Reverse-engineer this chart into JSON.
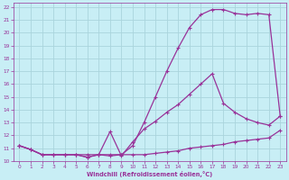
{
  "xlabel": "Windchill (Refroidissement éolien,°C)",
  "bg_color": "#c8eef5",
  "grid_color": "#aad4dc",
  "line_color": "#993399",
  "xlim": [
    -0.5,
    23.5
  ],
  "ylim": [
    10,
    22.3
  ],
  "xticks": [
    0,
    1,
    2,
    3,
    4,
    5,
    6,
    7,
    8,
    9,
    10,
    11,
    12,
    13,
    14,
    15,
    16,
    17,
    18,
    19,
    20,
    21,
    22,
    23
  ],
  "yticks": [
    10,
    11,
    12,
    13,
    14,
    15,
    16,
    17,
    18,
    19,
    20,
    21,
    22
  ],
  "line1_x": [
    0,
    1,
    2,
    3,
    4,
    5,
    6,
    7,
    8,
    9,
    10,
    11,
    12,
    13,
    14,
    15,
    16,
    17,
    18,
    19,
    20,
    21,
    22,
    23
  ],
  "line1_y": [
    11.2,
    10.9,
    10.5,
    10.5,
    10.5,
    10.5,
    10.5,
    10.5,
    10.5,
    10.5,
    10.5,
    10.5,
    10.6,
    10.7,
    10.8,
    11.0,
    11.1,
    11.2,
    11.3,
    11.5,
    11.6,
    11.7,
    11.8,
    12.4
  ],
  "line2_x": [
    0,
    1,
    2,
    3,
    4,
    5,
    6,
    7,
    8,
    9,
    10,
    11,
    12,
    13,
    14,
    15,
    16,
    17,
    18,
    19,
    20,
    21,
    22,
    23
  ],
  "line2_y": [
    11.2,
    10.9,
    10.5,
    10.5,
    10.5,
    10.5,
    10.3,
    10.5,
    10.4,
    10.5,
    11.2,
    13.0,
    15.0,
    17.0,
    18.8,
    20.4,
    21.4,
    21.8,
    21.8,
    21.5,
    21.4,
    21.5,
    21.4,
    13.5
  ],
  "line3_x": [
    0,
    1,
    2,
    3,
    4,
    5,
    6,
    7,
    8,
    9,
    10,
    11,
    12,
    13,
    14,
    15,
    16,
    17,
    18,
    19,
    20,
    21,
    22,
    23
  ],
  "line3_y": [
    11.2,
    10.9,
    10.5,
    10.5,
    10.5,
    10.5,
    10.3,
    10.5,
    12.3,
    10.4,
    11.5,
    12.5,
    13.1,
    13.8,
    14.4,
    15.2,
    16.0,
    16.8,
    14.5,
    13.8,
    13.3,
    13.0,
    12.8,
    13.5
  ]
}
